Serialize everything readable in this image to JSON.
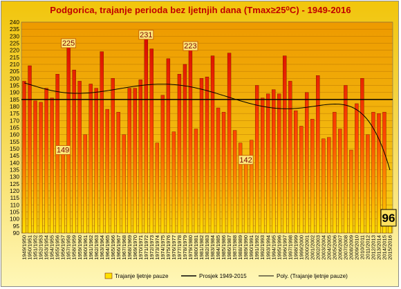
{
  "chart_data": {
    "type": "bar",
    "title": "Podgorica, trajanje perioda bez ljetnjih dana (Tmax≥25⁰C) - 1949-2016",
    "categories": [
      "1949/1950",
      "1950/1951",
      "1951/1952",
      "1952/1953",
      "1953/1954",
      "1954/1955",
      "1955/1956",
      "1956/1957",
      "1957/1958",
      "1958/1959",
      "1959/1960",
      "1960/1961",
      "1961/1962",
      "1962/1963",
      "1963/1964",
      "1964/1965",
      "1965/1966",
      "1966/1967",
      "1967/1968",
      "1968/1969",
      "1969/1970",
      "1970/1971",
      "1971/1972",
      "1972/1973",
      "1973/1974",
      "1974/1975",
      "1975/1976",
      "1976/1977",
      "1977/1978",
      "1978/1979",
      "1979/1980",
      "1980/1981",
      "1981/1982",
      "1982/1983",
      "1983/1984",
      "1984/1985",
      "1985/1986",
      "1986/1987",
      "1987/1988",
      "1988/1989",
      "1989/1990",
      "1990/1991",
      "1991/1992",
      "1992/1993",
      "1993/1994",
      "1994/1995",
      "1995/1996",
      "1996/1997",
      "1997/1998",
      "1998/1999",
      "1999/2000",
      "2000/2001",
      "2001/2002",
      "2002/2003",
      "2003/2004",
      "2004/2005",
      "2005/2006",
      "2006/2007",
      "2007/2008",
      "2008/2009",
      "2009/2010",
      "2010/2011",
      "2011/2012",
      "2012/2013",
      "2013/2014",
      "2014/2015",
      "2015/2016"
    ],
    "series": [
      {
        "name": "Trajanje ljetnje pauze",
        "values": [
          198,
          209,
          184,
          183,
          193,
          186,
          203,
          149,
          225,
          206,
          198,
          160,
          196,
          193,
          219,
          178,
          200,
          176,
          160,
          193,
          193,
          199,
          231,
          221,
          154,
          188,
          214,
          162,
          203,
          210,
          223,
          164,
          200,
          201,
          216,
          179,
          176,
          218,
          163,
          154,
          142,
          156,
          195,
          186,
          189,
          192,
          189,
          216,
          198,
          177,
          166,
          190,
          171,
          202,
          157,
          158,
          176,
          164,
          195,
          149,
          182,
          200,
          160,
          176,
          175,
          176,
          96
        ]
      },
      {
        "name": "Prosjek 1949-2015",
        "value": 185
      },
      {
        "name": "Poly. (Trajanje ljetnje pauze)"
      }
    ],
    "data_labels": [
      "149",
      "225",
      "231",
      "223",
      "142",
      "96"
    ],
    "y_ticks": [
      "90",
      "95",
      "100",
      "105",
      "110",
      "115",
      "120",
      "125",
      "130",
      "135",
      "140",
      "145",
      "150",
      "155",
      "160",
      "165",
      "170",
      "175",
      "180",
      "185",
      "190",
      "195",
      "200",
      "205",
      "210",
      "215",
      "220",
      "225",
      "230",
      "235",
      "240"
    ],
    "ylim": [
      90,
      240
    ],
    "grid": true,
    "legend_position": "bottom",
    "colors": {
      "bar_top": "#d40000",
      "bar_bottom": "#ffe100",
      "average": "#000000",
      "trend": "#000000",
      "plot_bg": "#f3c000",
      "frame_bg": "#f5d64a"
    }
  }
}
